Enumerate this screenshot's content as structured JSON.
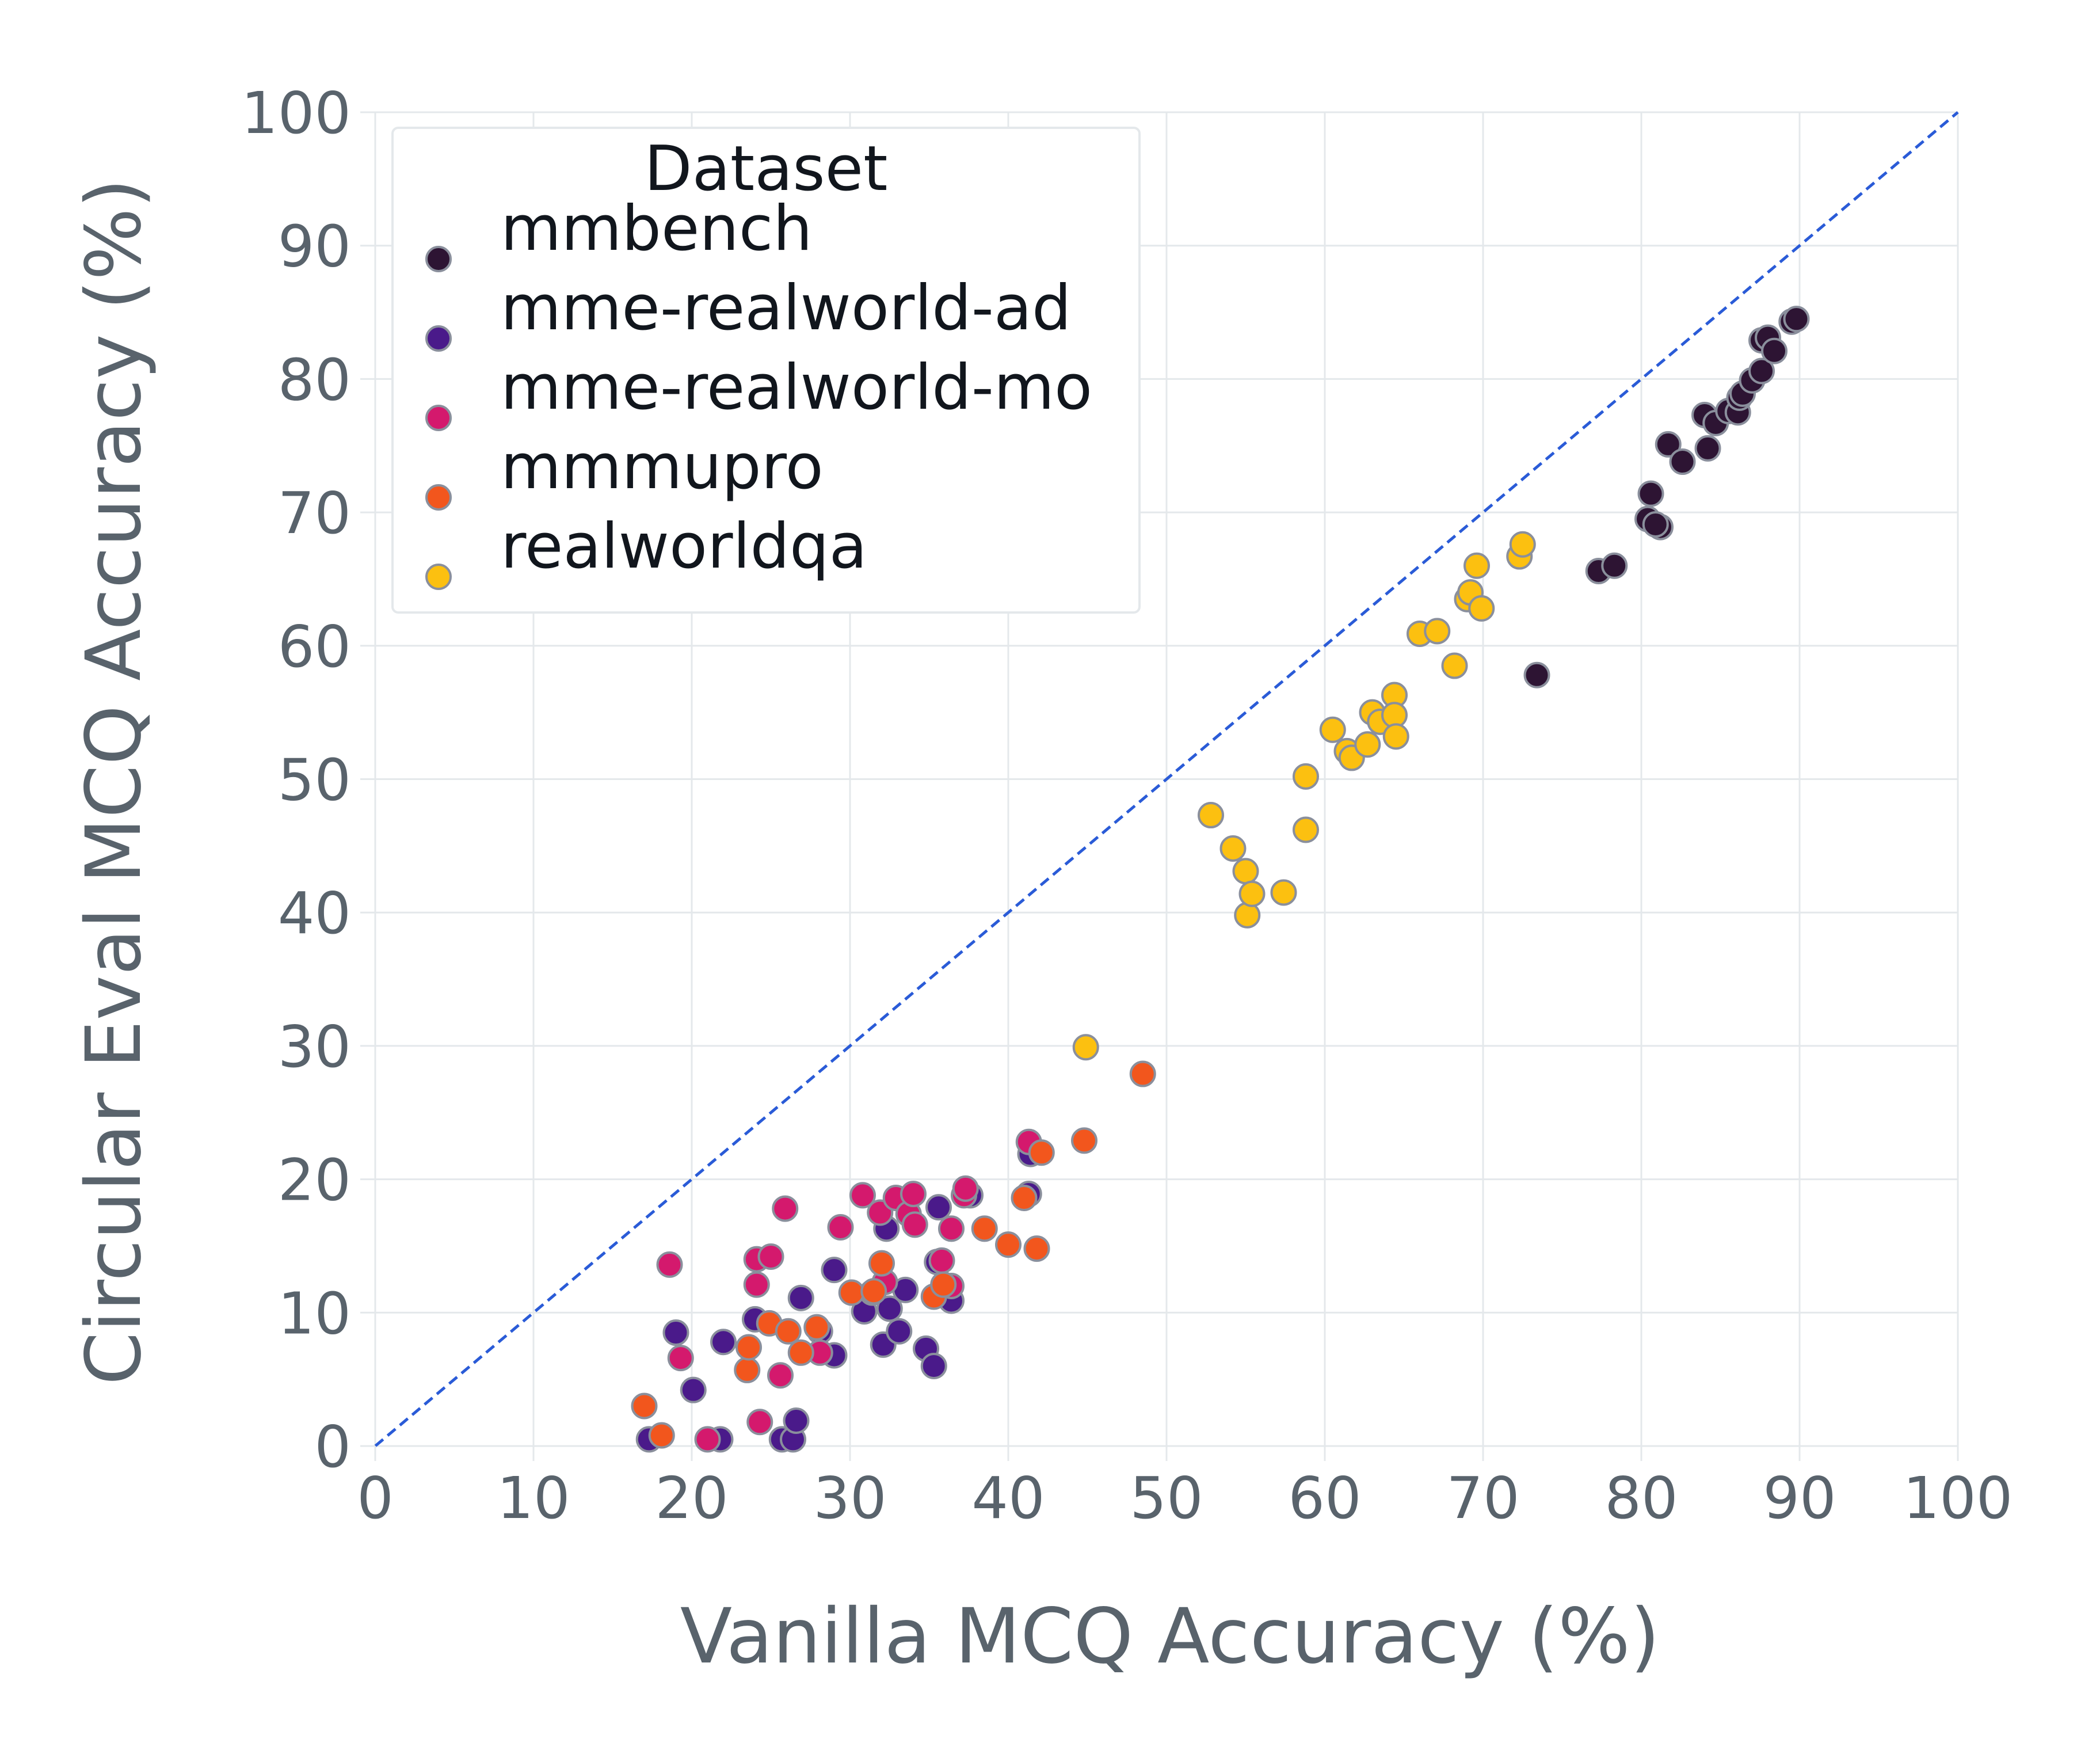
{
  "chart_data": {
    "type": "scatter",
    "title": "",
    "xlabel": "Vanilla MCQ Accuracy (%)",
    "ylabel": "Circular Eval MCQ Accuracy (%)",
    "xlim": [
      0,
      100
    ],
    "ylim": [
      0,
      100
    ],
    "xticks": [
      "0",
      "10",
      "20",
      "30",
      "40",
      "50",
      "60",
      "70",
      "80",
      "90",
      "100"
    ],
    "yticks": [
      "0",
      "10",
      "20",
      "30",
      "40",
      "50",
      "60",
      "70",
      "80",
      "90",
      "100"
    ],
    "grid": true,
    "reference_line": {
      "from": [
        0,
        0
      ],
      "to": [
        100,
        100
      ],
      "style": "dashed",
      "color": "#2a5bd7"
    },
    "legend": {
      "title": "Dataset",
      "position": "top-left"
    },
    "series": [
      {
        "name": "mmbench",
        "color": "#2d1433",
        "points": [
          [
            73.4,
            57.8
          ],
          [
            77.3,
            65.6
          ],
          [
            78.3,
            66.0
          ],
          [
            80.4,
            69.5
          ],
          [
            80.6,
            71.4
          ],
          [
            81.2,
            68.9
          ],
          [
            80.9,
            69.1
          ],
          [
            81.7,
            75.1
          ],
          [
            82.6,
            73.8
          ],
          [
            84.0,
            77.3
          ],
          [
            84.2,
            74.8
          ],
          [
            84.7,
            76.7
          ],
          [
            85.5,
            77.6
          ],
          [
            86.1,
            77.5
          ],
          [
            86.2,
            78.6
          ],
          [
            86.4,
            78.9
          ],
          [
            87.0,
            79.9
          ],
          [
            87.6,
            80.6
          ],
          [
            87.6,
            82.9
          ],
          [
            88.0,
            83.1
          ],
          [
            88.4,
            82.1
          ],
          [
            89.5,
            84.3
          ],
          [
            89.8,
            84.5
          ]
        ]
      },
      {
        "name": "mme-realworld-ad",
        "color": "#4a1a8a",
        "points": [
          [
            17.3,
            0.5
          ],
          [
            19.0,
            8.5
          ],
          [
            20.1,
            4.2
          ],
          [
            21.8,
            0.5
          ],
          [
            22.0,
            7.8
          ],
          [
            24.0,
            9.5
          ],
          [
            25.7,
            0.5
          ],
          [
            26.4,
            0.5
          ],
          [
            26.6,
            1.9
          ],
          [
            26.9,
            11.1
          ],
          [
            28.1,
            8.6
          ],
          [
            29.0,
            13.2
          ],
          [
            29.0,
            6.8
          ],
          [
            30.9,
            10.1
          ],
          [
            32.1,
            7.6
          ],
          [
            32.3,
            16.3
          ],
          [
            32.5,
            10.3
          ],
          [
            33.1,
            8.6
          ],
          [
            33.5,
            11.7
          ],
          [
            34.8,
            7.3
          ],
          [
            35.3,
            6.0
          ],
          [
            35.5,
            13.8
          ],
          [
            35.6,
            17.9
          ],
          [
            36.4,
            10.9
          ],
          [
            37.6,
            18.8
          ],
          [
            41.3,
            18.9
          ],
          [
            41.4,
            21.9
          ]
        ]
      },
      {
        "name": "mme-realworld-mo",
        "color": "#d4196d",
        "points": [
          [
            18.6,
            13.6
          ],
          [
            19.3,
            6.6
          ],
          [
            21.0,
            0.5
          ],
          [
            24.1,
            12.1
          ],
          [
            24.1,
            14.0
          ],
          [
            24.3,
            1.8
          ],
          [
            25.0,
            14.2
          ],
          [
            25.6,
            5.3
          ],
          [
            25.9,
            17.8
          ],
          [
            29.4,
            16.4
          ],
          [
            30.8,
            18.8
          ],
          [
            31.9,
            17.5
          ],
          [
            32.2,
            12.3
          ],
          [
            32.9,
            18.6
          ],
          [
            33.7,
            17.4
          ],
          [
            34.0,
            18.9
          ],
          [
            34.1,
            16.6
          ],
          [
            35.8,
            13.9
          ],
          [
            36.4,
            12.0
          ],
          [
            36.4,
            16.3
          ],
          [
            37.2,
            18.8
          ],
          [
            37.3,
            19.3
          ],
          [
            41.3,
            22.8
          ],
          [
            28.1,
            7.0
          ],
          [
            31.4,
            11.5
          ]
        ]
      },
      {
        "name": "mmmupro",
        "color": "#f2561d",
        "points": [
          [
            17.0,
            3.0
          ],
          [
            18.1,
            0.8
          ],
          [
            23.5,
            5.7
          ],
          [
            23.6,
            7.4
          ],
          [
            24.9,
            9.2
          ],
          [
            26.1,
            8.6
          ],
          [
            26.9,
            7.0
          ],
          [
            27.9,
            8.9
          ],
          [
            30.1,
            11.5
          ],
          [
            31.5,
            11.6
          ],
          [
            32.0,
            13.7
          ],
          [
            35.3,
            11.2
          ],
          [
            35.9,
            12.1
          ],
          [
            38.5,
            16.3
          ],
          [
            40.0,
            15.1
          ],
          [
            41.0,
            18.6
          ],
          [
            41.8,
            14.8
          ],
          [
            42.1,
            22.0
          ],
          [
            44.8,
            22.9
          ],
          [
            48.5,
            27.9
          ]
        ]
      },
      {
        "name": "realworldqa",
        "color": "#fcc010",
        "points": [
          [
            44.9,
            29.9
          ],
          [
            52.8,
            47.3
          ],
          [
            54.2,
            44.8
          ],
          [
            55.0,
            43.1
          ],
          [
            55.1,
            39.8
          ],
          [
            55.4,
            41.4
          ],
          [
            57.4,
            41.5
          ],
          [
            58.8,
            50.2
          ],
          [
            58.8,
            46.2
          ],
          [
            60.5,
            53.7
          ],
          [
            61.4,
            52.1
          ],
          [
            61.7,
            51.6
          ],
          [
            62.7,
            52.6
          ],
          [
            63.0,
            55.0
          ],
          [
            63.5,
            54.3
          ],
          [
            64.4,
            56.3
          ],
          [
            64.4,
            54.8
          ],
          [
            64.5,
            53.2
          ],
          [
            66.0,
            60.9
          ],
          [
            67.1,
            61.1
          ],
          [
            68.2,
            58.5
          ],
          [
            69.0,
            63.5
          ],
          [
            69.2,
            64.0
          ],
          [
            69.6,
            66.0
          ],
          [
            69.9,
            62.8
          ],
          [
            72.3,
            66.7
          ],
          [
            72.5,
            67.6
          ]
        ]
      }
    ]
  }
}
